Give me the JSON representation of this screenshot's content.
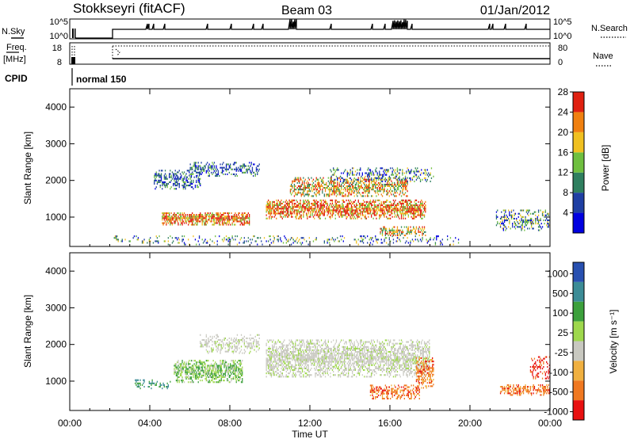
{
  "header": {
    "station": "Stokkseyri (fitACF)",
    "beam": "Beam 03",
    "date": "01/Jan/2012"
  },
  "status_panels": {
    "nsky_label": "N.Sky",
    "nsky_ticks": [
      "10^5",
      "10^0"
    ],
    "nsearch_label": "N.Search",
    "nsearch_ticks": [
      "10^5",
      "10^0"
    ],
    "freq_label": "Freq.",
    "freq_unit": "[MHz]",
    "freq_ticks": [
      "18",
      "8"
    ],
    "nave_label": "Nave",
    "nave_ticks": [
      "80",
      "0"
    ],
    "cpid_label": "CPID",
    "cpid_text": "normal 150"
  },
  "chart_data": [
    {
      "type": "heatmap",
      "name": "power",
      "ylabel": "Slant Range [km]",
      "yticks": [
        "1000",
        "2000",
        "3000",
        "4000"
      ],
      "ylim": [
        200,
        4500
      ],
      "xlim": [
        0,
        24
      ],
      "colorbar_label": "Power [dB]",
      "colorbar_ticks": [
        "4",
        "8",
        "12",
        "16",
        "20",
        "24",
        "28"
      ],
      "colorbar_colors": [
        "#0000e0",
        "#1f3fa3",
        "#2f7f5f",
        "#6fbf3f",
        "#f0c020",
        "#f08010",
        "#e02010"
      ]
    },
    {
      "type": "heatmap",
      "name": "velocity",
      "ylabel": "Slant Range [km]",
      "yticks": [
        "1000",
        "2000",
        "3000",
        "4000"
      ],
      "ylim": [
        200,
        4500
      ],
      "xlim": [
        0,
        24
      ],
      "colorbar_label": "Velocity [m s⁻¹]",
      "colorbar_ticks": [
        "1000",
        "500",
        "100",
        "25",
        "-25",
        "-100",
        "-500",
        "-1000"
      ],
      "colorbar_colors": [
        "#2850b0",
        "#3c8c96",
        "#3ca03c",
        "#9ed84c",
        "#c8c8c0",
        "#f0b040",
        "#f07820",
        "#e81010"
      ]
    }
  ],
  "xaxis": {
    "ticks": [
      "00:00",
      "04:00",
      "08:00",
      "12:00",
      "16:00",
      "20:00",
      "00:00"
    ],
    "label": "Time UT"
  }
}
